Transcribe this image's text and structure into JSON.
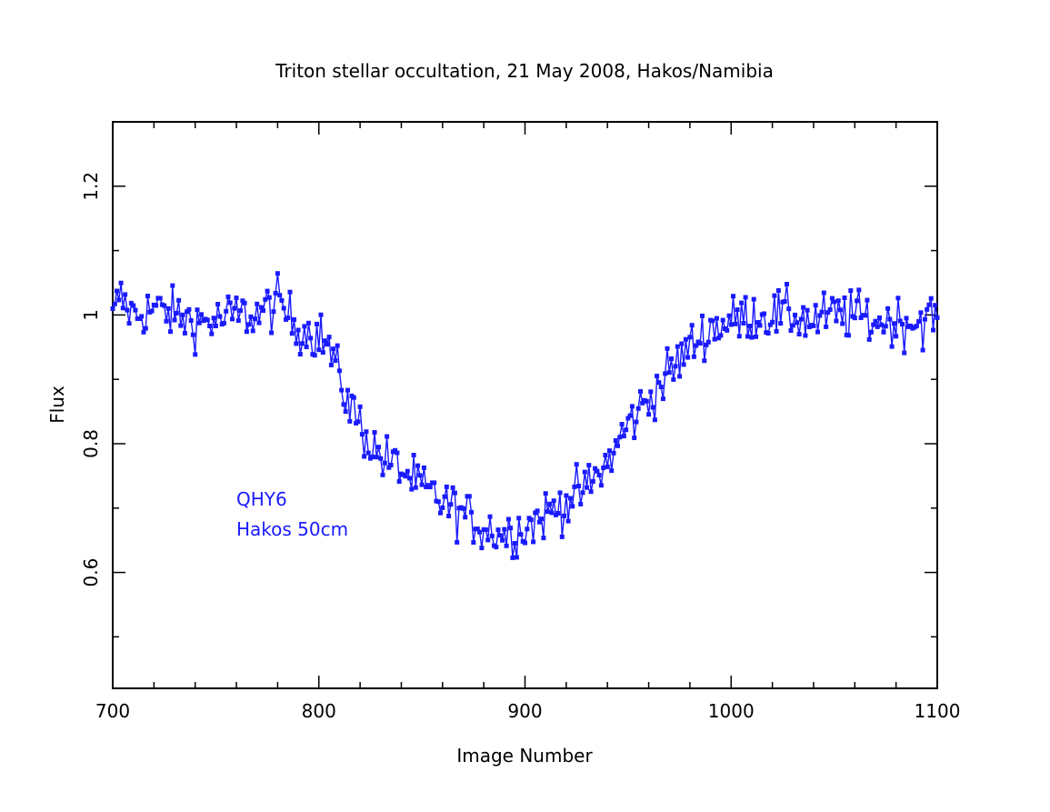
{
  "chart_data": {
    "type": "line",
    "title": "Triton stellar occultation, 21 May 2008, Hakos/Namibia",
    "xlabel": "Image Number",
    "ylabel": "Flux",
    "xlim": [
      700,
      1100
    ],
    "ylim": [
      0.42,
      1.3
    ],
    "xticks": [
      700,
      800,
      900,
      1000,
      1100
    ],
    "xtick_labels": [
      "700",
      "800",
      "900",
      "1000",
      "1100"
    ],
    "yticks": [
      0.6,
      0.8,
      1.0,
      1.2
    ],
    "ytick_labels": [
      "0.6",
      "0.8",
      "1",
      "1.2"
    ],
    "grid": false,
    "series_color": "#1a1aff",
    "annotations": [
      "QHY6",
      "Hakos 50cm"
    ],
    "anchors": [
      [
        700,
        0.99
      ],
      [
        703,
        1.03
      ],
      [
        710,
        1.0
      ],
      [
        720,
        1.01
      ],
      [
        730,
        1.0
      ],
      [
        740,
        0.99
      ],
      [
        750,
        0.99
      ],
      [
        760,
        1.0
      ],
      [
        770,
        1.0
      ],
      [
        780,
        1.02
      ],
      [
        790,
        0.98
      ],
      [
        800,
        0.97
      ],
      [
        805,
        0.95
      ],
      [
        810,
        0.9
      ],
      [
        815,
        0.86
      ],
      [
        820,
        0.83
      ],
      [
        825,
        0.8
      ],
      [
        830,
        0.78
      ],
      [
        840,
        0.76
      ],
      [
        850,
        0.73
      ],
      [
        860,
        0.71
      ],
      [
        870,
        0.69
      ],
      [
        880,
        0.67
      ],
      [
        890,
        0.66
      ],
      [
        900,
        0.67
      ],
      [
        910,
        0.69
      ],
      [
        920,
        0.71
      ],
      [
        930,
        0.73
      ],
      [
        940,
        0.77
      ],
      [
        950,
        0.83
      ],
      [
        960,
        0.87
      ],
      [
        970,
        0.91
      ],
      [
        980,
        0.95
      ],
      [
        990,
        0.98
      ],
      [
        1000,
        0.99
      ],
      [
        1010,
        1.0
      ],
      [
        1020,
        1.0
      ],
      [
        1030,
        1.0
      ],
      [
        1040,
        0.99
      ],
      [
        1050,
        1.0
      ],
      [
        1060,
        1.0
      ],
      [
        1070,
        0.99
      ],
      [
        1080,
        0.99
      ],
      [
        1090,
        0.99
      ],
      [
        1100,
        1.0
      ]
    ],
    "noise_amplitude": 0.028,
    "point_spacing": 1
  }
}
